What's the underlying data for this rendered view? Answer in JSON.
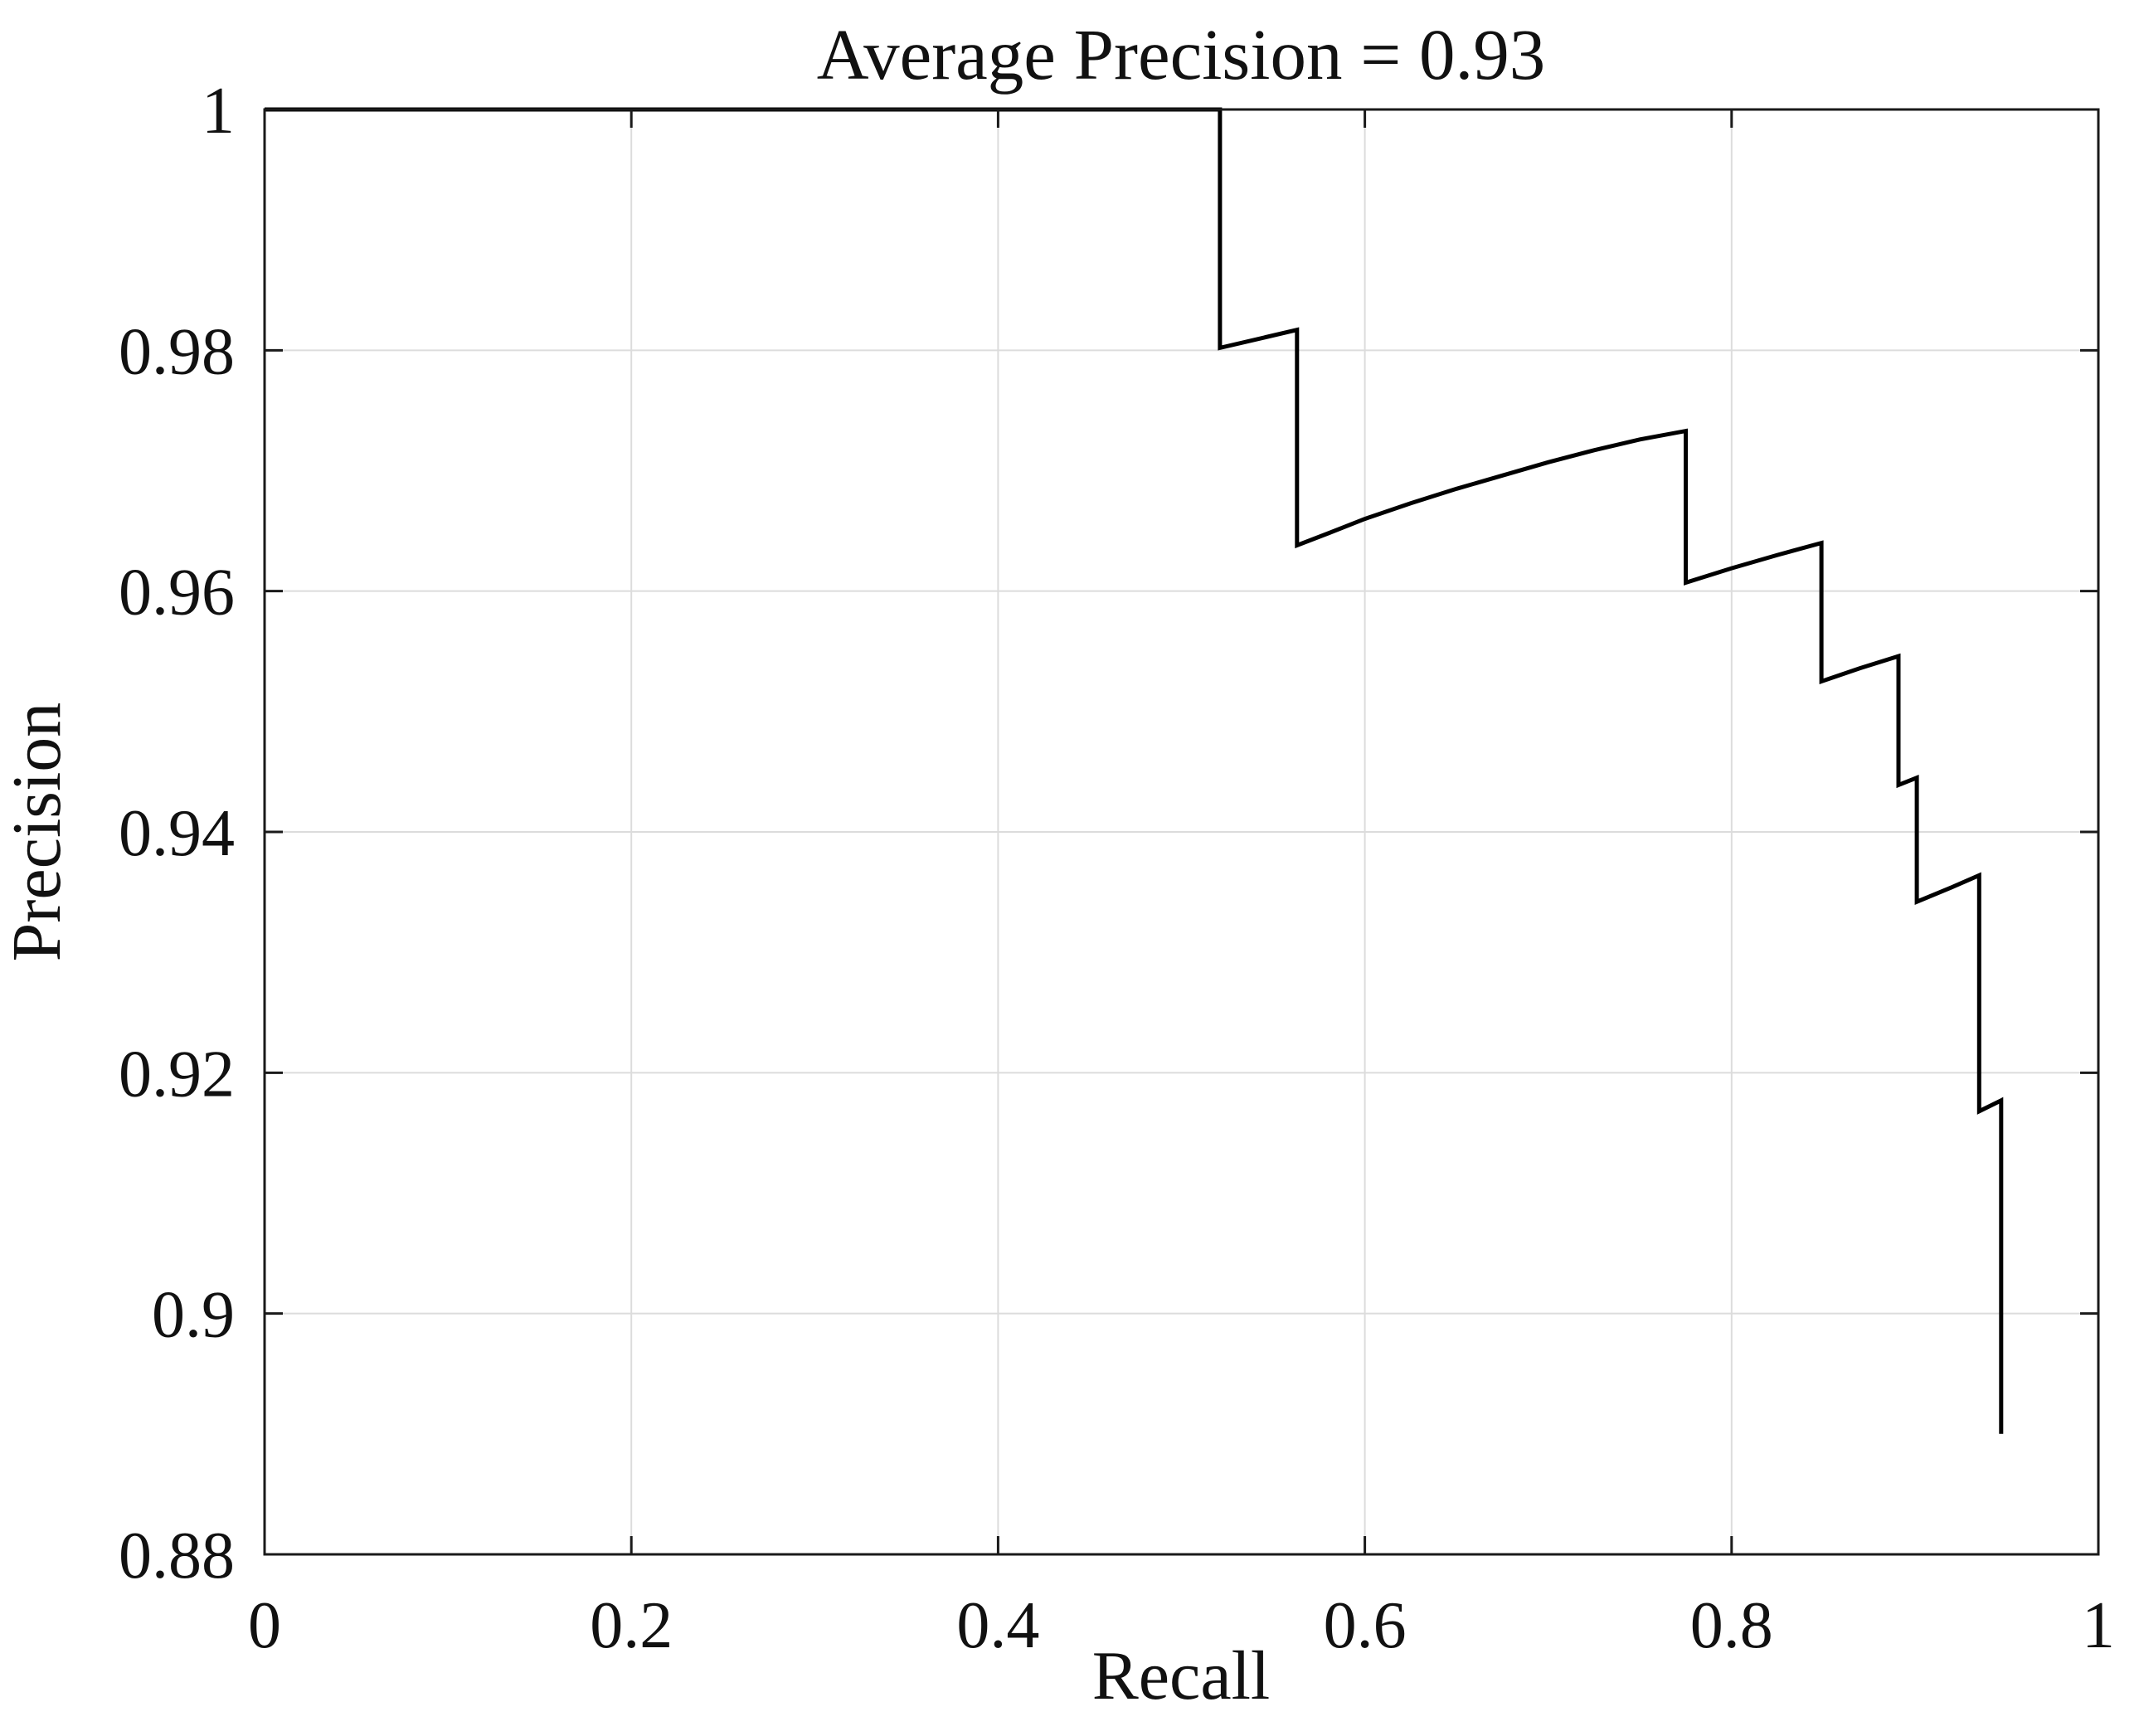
{
  "title": "Average Precision = 0.93",
  "average_precision": 0.93,
  "x_axis": {
    "label": "Recall",
    "tick_labels": [
      "0",
      "0.2",
      "0.4",
      "0.6",
      "0.8",
      "1"
    ],
    "tick_values": [
      0,
      0.2,
      0.4,
      0.6,
      0.8,
      1
    ],
    "range": [
      0,
      1
    ]
  },
  "y_axis": {
    "label": "Precision",
    "tick_labels": [
      "0.88",
      "0.9",
      "0.92",
      "0.94",
      "0.96",
      "0.98",
      "1"
    ],
    "tick_values": [
      0.88,
      0.9,
      0.92,
      0.94,
      0.96,
      0.98,
      1
    ],
    "range": [
      0.88,
      1
    ]
  },
  "colors": {
    "curve": "#000000",
    "grid": "#dcdcdc",
    "axis": "#1a1a1a",
    "text": "#111111",
    "background": "#ffffff"
  },
  "chart_data": {
    "type": "line",
    "title": "Average Precision = 0.93",
    "xlabel": "Recall",
    "ylabel": "Precision",
    "xlim": [
      0,
      1
    ],
    "ylim": [
      0.88,
      1
    ],
    "grid": true,
    "legend": false,
    "average_precision": 0.93,
    "series": [
      {
        "name": "precision-recall-curve",
        "color": "#000000",
        "points": [
          [
            0.0,
            1.0
          ],
          [
            0.521,
            1.0
          ],
          [
            0.521,
            0.9802
          ],
          [
            0.563,
            0.9817
          ],
          [
            0.563,
            0.9638
          ],
          [
            0.58,
            0.9648
          ],
          [
            0.6,
            0.966
          ],
          [
            0.625,
            0.9673
          ],
          [
            0.65,
            0.9685
          ],
          [
            0.675,
            0.9696
          ],
          [
            0.7,
            0.9707
          ],
          [
            0.725,
            0.9717
          ],
          [
            0.75,
            0.9726
          ],
          [
            0.775,
            0.9733
          ],
          [
            0.775,
            0.9607
          ],
          [
            0.8,
            0.9619
          ],
          [
            0.825,
            0.963
          ],
          [
            0.849,
            0.964
          ],
          [
            0.849,
            0.9525
          ],
          [
            0.87,
            0.9536
          ],
          [
            0.891,
            0.9546
          ],
          [
            0.891,
            0.9439
          ],
          [
            0.901,
            0.9445
          ],
          [
            0.901,
            0.9342
          ],
          [
            0.92,
            0.9354
          ],
          [
            0.935,
            0.9364
          ],
          [
            0.935,
            0.9168
          ],
          [
            0.947,
            0.9177
          ],
          [
            0.947,
            0.89
          ]
        ]
      }
    ]
  }
}
